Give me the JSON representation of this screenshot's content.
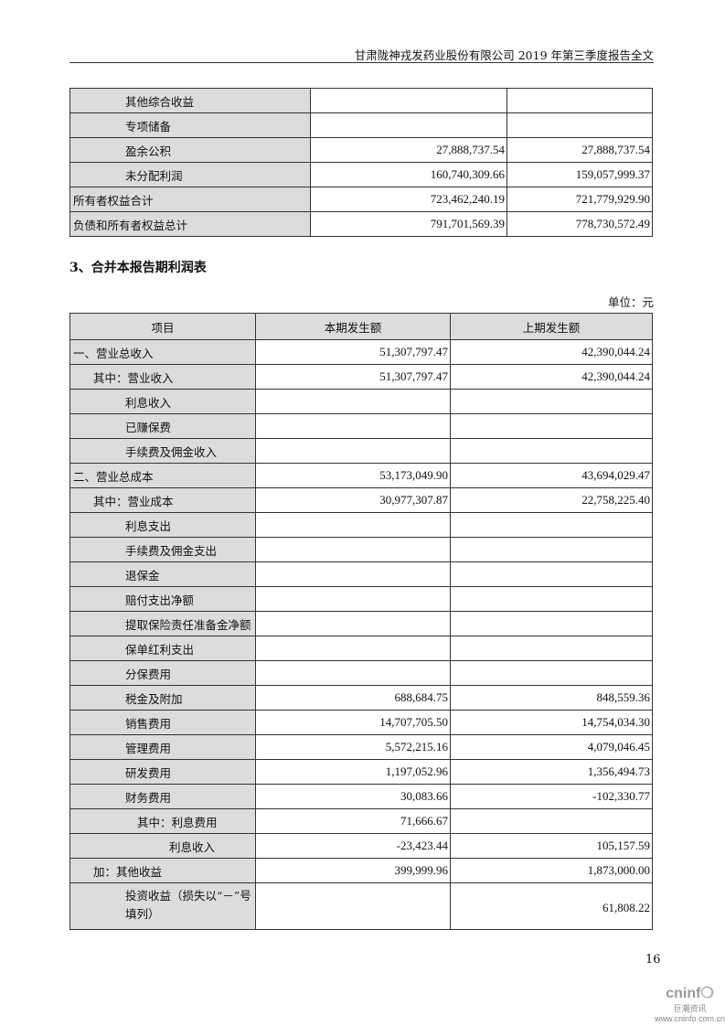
{
  "header": {
    "title": "甘肃陇神戎发药业股份有限公司 2019 年第三季度报告全文"
  },
  "balance_tail": [
    {
      "label": "其他综合收益",
      "current": "",
      "previous": ""
    },
    {
      "label": "专项储备",
      "current": "",
      "previous": ""
    },
    {
      "label": "盈余公积",
      "current": "27,888,737.54",
      "previous": "27,888,737.54"
    },
    {
      "label": "未分配利润",
      "current": "160,740,309.66",
      "previous": "159,057,999.37"
    },
    {
      "label": "所有者权益合计",
      "current": "723,462,240.19",
      "previous": "721,779,929.90"
    },
    {
      "label": "负债和所有者权益总计",
      "current": "791,701,569.39",
      "previous": "778,730,572.49"
    }
  ],
  "section_title": "3、合并本报告期利润表",
  "unit": "单位：元",
  "income": {
    "columns": [
      "项目",
      "本期发生额",
      "上期发生额"
    ],
    "rows": [
      {
        "label": "一、营业总收入",
        "current": "51,307,797.47",
        "previous": "42,390,044.24"
      },
      {
        "label": "其中：营业收入",
        "current": "51,307,797.47",
        "previous": "42,390,044.24"
      },
      {
        "label": "利息收入",
        "current": "",
        "previous": ""
      },
      {
        "label": "已赚保费",
        "current": "",
        "previous": ""
      },
      {
        "label": "手续费及佣金收入",
        "current": "",
        "previous": ""
      },
      {
        "label": "二、营业总成本",
        "current": "53,173,049.90",
        "previous": "43,694,029.47"
      },
      {
        "label": "其中：营业成本",
        "current": "30,977,307.87",
        "previous": "22,758,225.40"
      },
      {
        "label": "利息支出",
        "current": "",
        "previous": ""
      },
      {
        "label": "手续费及佣金支出",
        "current": "",
        "previous": ""
      },
      {
        "label": "退保金",
        "current": "",
        "previous": ""
      },
      {
        "label": "赔付支出净额",
        "current": "",
        "previous": ""
      },
      {
        "label": "提取保险责任准备金净额",
        "current": "",
        "previous": ""
      },
      {
        "label": "保单红利支出",
        "current": "",
        "previous": ""
      },
      {
        "label": "分保费用",
        "current": "",
        "previous": ""
      },
      {
        "label": "税金及附加",
        "current": "688,684.75",
        "previous": "848,559.36"
      },
      {
        "label": "销售费用",
        "current": "14,707,705.50",
        "previous": "14,754,034.30"
      },
      {
        "label": "管理费用",
        "current": "5,572,215.16",
        "previous": "4,079,046.45"
      },
      {
        "label": "研发费用",
        "current": "1,197,052.96",
        "previous": "1,356,494.73"
      },
      {
        "label": "财务费用",
        "current": "30,083.66",
        "previous": "-102,330.77"
      },
      {
        "label": "其中：利息费用",
        "current": "71,666.67",
        "previous": ""
      },
      {
        "label": "利息收入",
        "current": "-23,423.44",
        "previous": "105,157.59"
      },
      {
        "label": "加：其他收益",
        "current": "399,999.96",
        "previous": "1,873,000.00"
      },
      {
        "label": "投资收益（损失以“－”号填列）",
        "current": "",
        "previous": "61,808.22"
      }
    ]
  },
  "page_number": "16",
  "logo": {
    "brand": "cninf",
    "cn": "巨潮资讯",
    "url": "www.cninfo.com.cn"
  }
}
